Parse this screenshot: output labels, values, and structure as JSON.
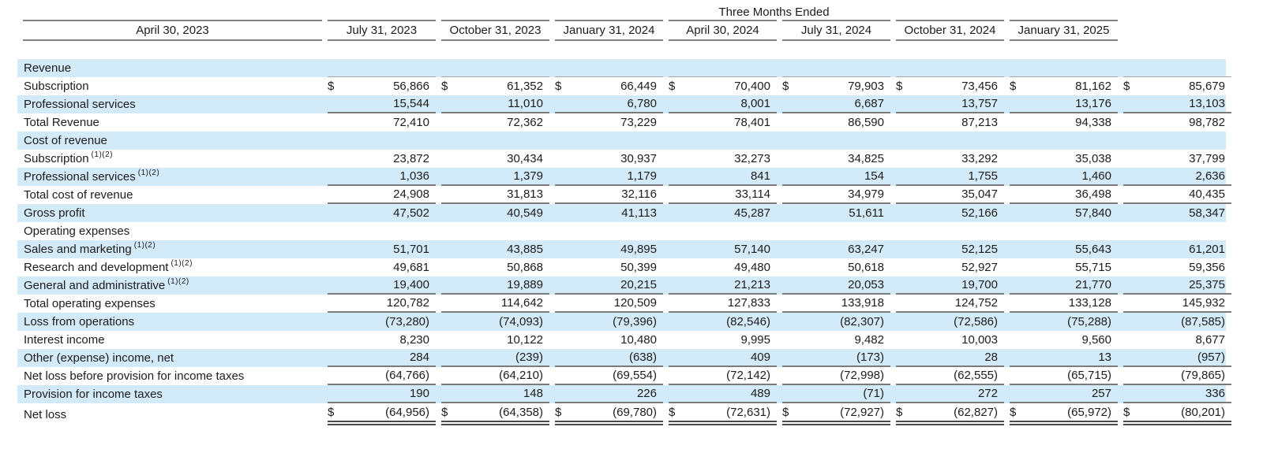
{
  "colors": {
    "row_stripe": "#d3eaf8",
    "header_line": "#828282",
    "single_underline": "#7b7b7b",
    "double_underline": "#4a4a4a",
    "section_divider": "#a6a6a6",
    "text": "#1c1c1c"
  },
  "table": {
    "currency_symbol": "$",
    "header": {
      "group_title": "Three Months Ended",
      "columns": [
        "April 30, 2023",
        "July 31, 2023",
        "October 31, 2023",
        "January 31, 2024",
        "April 30, 2024",
        "July 31, 2024",
        "October 31, 2024",
        "January 31, 2025"
      ]
    },
    "rows": [
      {
        "label": "Revenue",
        "striped": true,
        "dollar": false,
        "underline": "thin",
        "values": [
          "",
          "",
          "",
          "",
          "",
          "",
          "",
          ""
        ]
      },
      {
        "label": "Subscription",
        "striped": false,
        "dollar": true,
        "underline": "none",
        "values": [
          "56,866",
          "61,352",
          "66,449",
          "70,400",
          "79,903",
          "73,456",
          "81,162",
          "85,679"
        ]
      },
      {
        "label": "Professional services",
        "striped": true,
        "dollar": false,
        "underline": "single",
        "values": [
          "15,544",
          "11,010",
          "6,780",
          "8,001",
          "6,687",
          "13,757",
          "13,176",
          "13,103"
        ]
      },
      {
        "label": "Total Revenue",
        "striped": false,
        "dollar": false,
        "underline": "none",
        "values": [
          "72,410",
          "72,362",
          "73,229",
          "78,401",
          "86,590",
          "87,213",
          "94,338",
          "98,782"
        ]
      },
      {
        "label": "Cost of revenue",
        "striped": true,
        "dollar": false,
        "underline": "none",
        "values": [
          "",
          "",
          "",
          "",
          "",
          "",
          "",
          ""
        ]
      },
      {
        "label": "Subscription",
        "superscript": "(1)(2)",
        "striped": false,
        "dollar": false,
        "underline": "none",
        "values": [
          "23,872",
          "30,434",
          "30,937",
          "32,273",
          "34,825",
          "33,292",
          "35,038",
          "37,799"
        ]
      },
      {
        "label": "Professional services",
        "superscript": "(1)(2)",
        "striped": true,
        "dollar": false,
        "underline": "single",
        "values": [
          "1,036",
          "1,379",
          "1,179",
          "841",
          "154",
          "1,755",
          "1,460",
          "2,636"
        ]
      },
      {
        "label": "Total cost of revenue",
        "striped": false,
        "dollar": false,
        "underline": "single",
        "values": [
          "24,908",
          "31,813",
          "32,116",
          "33,114",
          "34,979",
          "35,047",
          "36,498",
          "40,435"
        ]
      },
      {
        "label": "Gross profit",
        "striped": true,
        "dollar": false,
        "underline": "none",
        "values": [
          "47,502",
          "40,549",
          "41,113",
          "45,287",
          "51,611",
          "52,166",
          "57,840",
          "58,347"
        ]
      },
      {
        "label": "Operating expenses",
        "striped": false,
        "dollar": false,
        "underline": "none",
        "values": [
          "",
          "",
          "",
          "",
          "",
          "",
          "",
          ""
        ]
      },
      {
        "label": "Sales and marketing",
        "superscript": "(1)(2)",
        "striped": true,
        "dollar": false,
        "underline": "none",
        "values": [
          "51,701",
          "43,885",
          "49,895",
          "57,140",
          "63,247",
          "52,125",
          "55,643",
          "61,201"
        ]
      },
      {
        "label": "Research and development",
        "superscript": "(1)(2)",
        "striped": false,
        "dollar": false,
        "underline": "none",
        "values": [
          "49,681",
          "50,868",
          "50,399",
          "49,480",
          "50,618",
          "52,927",
          "55,715",
          "59,356"
        ]
      },
      {
        "label": "General and administrative",
        "superscript": "(1)(2)",
        "striped": true,
        "dollar": false,
        "underline": "single",
        "values": [
          "19,400",
          "19,889",
          "20,215",
          "21,213",
          "20,053",
          "19,700",
          "21,770",
          "25,375"
        ]
      },
      {
        "label": "Total operating expenses",
        "striped": false,
        "dollar": false,
        "underline": "single",
        "values": [
          "120,782",
          "114,642",
          "120,509",
          "127,833",
          "133,918",
          "124,752",
          "133,128",
          "145,932"
        ]
      },
      {
        "label": "Loss from operations",
        "striped": true,
        "dollar": false,
        "underline": "none",
        "values": [
          "(73,280)",
          "(74,093)",
          "(79,396)",
          "(82,546)",
          "(82,307)",
          "(72,586)",
          "(75,288)",
          "(87,585)"
        ]
      },
      {
        "label": "Interest income",
        "striped": false,
        "dollar": false,
        "underline": "none",
        "values": [
          "8,230",
          "10,122",
          "10,480",
          "9,995",
          "9,482",
          "10,003",
          "9,560",
          "8,677"
        ]
      },
      {
        "label": "Other (expense) income, net",
        "striped": true,
        "dollar": false,
        "underline": "single",
        "values": [
          "284",
          "(239)",
          "(638)",
          "409",
          "(173)",
          "28",
          "13",
          "(957)"
        ]
      },
      {
        "label": "Net loss before provision for income taxes",
        "striped": false,
        "dollar": false,
        "underline": "single",
        "values": [
          "(64,766)",
          "(64,210)",
          "(69,554)",
          "(72,142)",
          "(72,998)",
          "(62,555)",
          "(65,715)",
          "(79,865)"
        ]
      },
      {
        "label": "Provision for income taxes",
        "striped": true,
        "dollar": false,
        "underline": "single",
        "values": [
          "190",
          "148",
          "226",
          "489",
          "(71)",
          "272",
          "257",
          "336"
        ]
      },
      {
        "label": "Net loss",
        "striped": false,
        "dollar": true,
        "underline": "double",
        "values": [
          "(64,956)",
          "(64,358)",
          "(69,780)",
          "(72,631)",
          "(72,927)",
          "(62,827)",
          "(65,972)",
          "(80,201)"
        ]
      }
    ]
  }
}
